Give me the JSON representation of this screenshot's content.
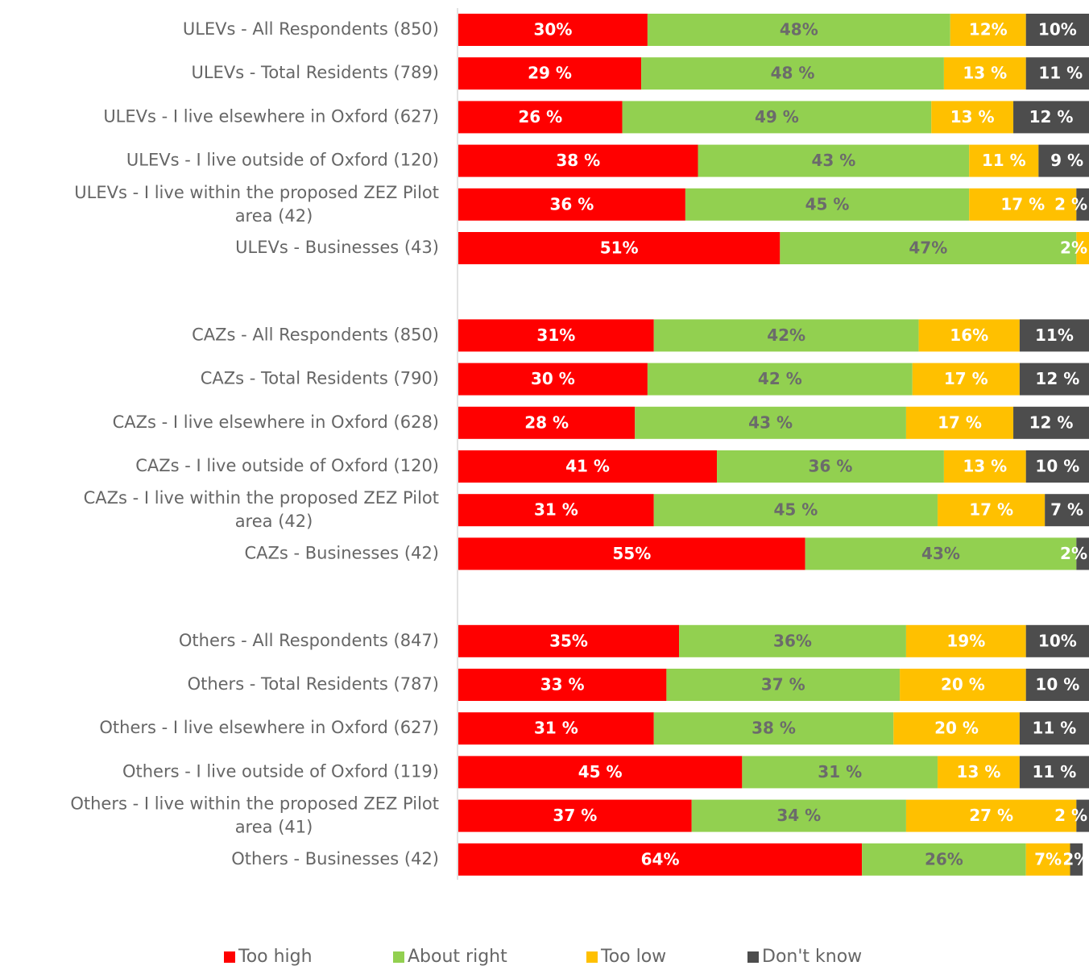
{
  "chart_data": {
    "type": "stacked-bar-horizontal",
    "categories": [
      "ULEVs - All Respondents (850)",
      "ULEVs - Total Residents (789)",
      "ULEVs - I live elsewhere in Oxford (627)",
      "ULEVs - I live outside of Oxford (120)",
      "ULEVs - I live within the proposed ZEZ Pilot area (42)",
      "ULEVs - Businesses (43)",
      null,
      "CAZs - All Respondents (850)",
      "CAZs - Total Residents (790)",
      "CAZs - I live elsewhere in Oxford (628)",
      "CAZs - I live outside of Oxford (120)",
      "CAZs - I live within the proposed ZEZ Pilot area (42)",
      "CAZs - Businesses (42)",
      null,
      "Others - All Respondents (847)",
      "Others - Total Residents (787)",
      "Others - I live elsewhere in Oxford (627)",
      "Others - I live outside of Oxford (119)",
      "Others - I live within the proposed ZEZ Pilot area (41)",
      "Others - Businesses (42)"
    ],
    "xlim": [
      0,
      100
    ],
    "series": [
      {
        "name": "Too high",
        "color": "#ff0000",
        "label_color": "#ffffff",
        "values": [
          30,
          29,
          26,
          38,
          36,
          51,
          null,
          31,
          30,
          28,
          41,
          31,
          55,
          null,
          35,
          33,
          31,
          45,
          37,
          64
        ],
        "value_labels": [
          "30%",
          "29 %",
          "26 %",
          "38 %",
          "36 %",
          "51%",
          null,
          "31%",
          "30 %",
          "28 %",
          "41 %",
          "31 %",
          "55%",
          null,
          "35%",
          "33 %",
          "31 %",
          "45 %",
          "37 %",
          "64%"
        ]
      },
      {
        "name": "About right",
        "color": "#92d050",
        "label_color": "#6b6b6b",
        "values": [
          48,
          48,
          49,
          43,
          45,
          47,
          null,
          42,
          42,
          43,
          36,
          45,
          43,
          null,
          36,
          37,
          38,
          31,
          34,
          26
        ],
        "value_labels": [
          "48%",
          "48 %",
          "49 %",
          "43 %",
          "45 %",
          "47%",
          null,
          "42%",
          "42 %",
          "43 %",
          "36 %",
          "45 %",
          "43%",
          null,
          "36%",
          "37 %",
          "38 %",
          "31 %",
          "34 %",
          "26%"
        ]
      },
      {
        "name": "Too low",
        "color": "#ffc000",
        "label_color": "#ffffff",
        "values": [
          12,
          13,
          13,
          11,
          17,
          2,
          null,
          16,
          17,
          17,
          13,
          17,
          0,
          null,
          19,
          20,
          20,
          13,
          27,
          7
        ],
        "value_labels": [
          "12%",
          "13 %",
          "13 %",
          "11 %",
          "17 %",
          "2%",
          null,
          "16%",
          "17 %",
          "17 %",
          "13 %",
          "17 %",
          null,
          null,
          "19%",
          "20 %",
          "20 %",
          "13 %",
          "27 %",
          "7%"
        ]
      },
      {
        "name": "Don't know",
        "color": "#4d4d4d",
        "label_color": "#ffffff",
        "values": [
          10,
          11,
          12,
          9,
          2,
          0,
          null,
          11,
          12,
          12,
          10,
          7,
          2,
          null,
          10,
          10,
          11,
          11,
          2,
          2
        ],
        "value_labels": [
          "10%",
          "11 %",
          "12 %",
          "9 %",
          "2 %",
          null,
          null,
          "11%",
          "12 %",
          "12 %",
          "10 %",
          "7 %",
          "2%",
          null,
          "10%",
          "10 %",
          "11 %",
          "11 %",
          "2 %",
          "2%"
        ]
      }
    ]
  }
}
